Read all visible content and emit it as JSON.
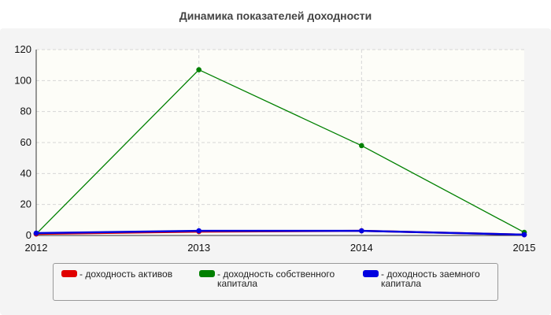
{
  "chart_data": {
    "type": "line",
    "title": "Динамика показателей доходности",
    "x": [
      "2012",
      "2013",
      "2014",
      "2015"
    ],
    "ylim": [
      0,
      120
    ],
    "yticks": [
      "0",
      "20",
      "40",
      "60",
      "80",
      "100",
      "120"
    ],
    "grid": true,
    "legend_position": "bottom",
    "series": [
      {
        "name": "- доходность активов",
        "color": "#e00000",
        "values": [
          1,
          2.5,
          3,
          0.5
        ]
      },
      {
        "name": "- доходность собственного капитала",
        "color": "#008000",
        "values": [
          1,
          107,
          58,
          2
        ]
      },
      {
        "name": "- доходность заемного капитала",
        "color": "#0000e0",
        "values": [
          1.5,
          3,
          3,
          0.5
        ]
      }
    ]
  }
}
